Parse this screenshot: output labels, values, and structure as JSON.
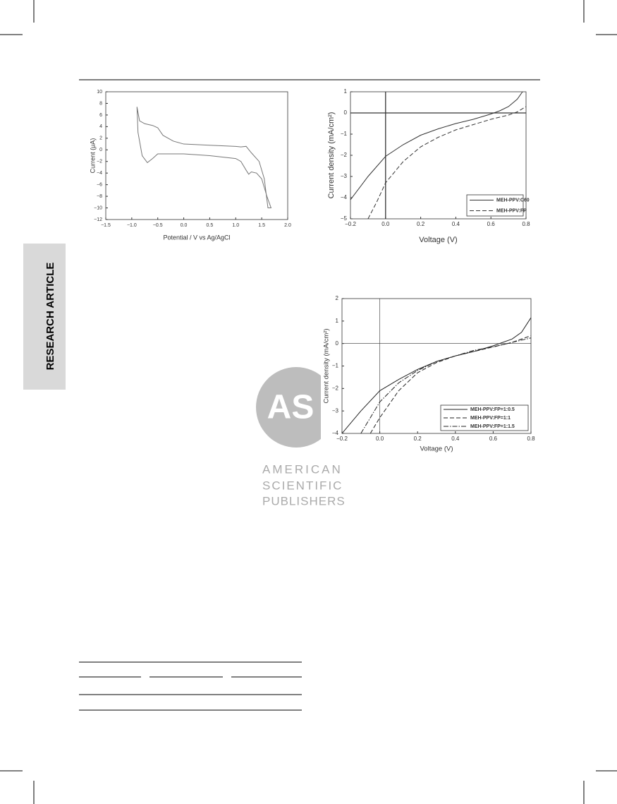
{
  "sidebar": "RESEARCH ARTICLE",
  "logo": {
    "mark": "AS",
    "lines": [
      "AMERICAN",
      "SCIENTIFIC",
      "PUBLISHERS"
    ]
  },
  "chart_data": [
    {
      "type": "line",
      "x_label": "Potential / V vs Ag/AgCl",
      "y_label": "Current (μA)",
      "xlim": [
        -1.5,
        2.0
      ],
      "ylim": [
        -12,
        10
      ],
      "xticks": [
        {
          "value": -1.5,
          "label": "−1.5"
        },
        {
          "value": -1.0,
          "label": "−1.0"
        },
        {
          "value": -0.5,
          "label": "−0.5"
        },
        {
          "value": 0,
          "label": "0.0"
        },
        {
          "value": 0.5,
          "label": "0.5"
        },
        {
          "value": 1.0,
          "label": "1.0"
        },
        {
          "value": 1.5,
          "label": "1.5"
        },
        {
          "value": 2.0,
          "label": "2.0"
        }
      ],
      "yticks": [
        {
          "value": -12,
          "label": "−12"
        },
        {
          "value": -10,
          "label": "−10"
        },
        {
          "value": -8,
          "label": "−8"
        },
        {
          "value": -6,
          "label": "−6"
        },
        {
          "value": -4,
          "label": "−4"
        },
        {
          "value": -2,
          "label": "−2"
        },
        0,
        2,
        4,
        6,
        8,
        10
      ],
      "series": [
        {
          "color": "#777777",
          "dash": "solid",
          "x": [
            -0.9,
            -0.85,
            -0.75,
            -0.6,
            -0.5,
            -0.4,
            -0.2,
            0,
            0.5,
            1.0,
            1.1,
            1.2,
            1.3,
            1.45,
            1.55,
            1.62,
            1.68,
            1.6,
            1.5,
            1.4,
            1.3,
            1.25,
            1.2,
            1.1,
            1.0,
            0.5,
            0,
            -0.5,
            -0.6,
            -0.7,
            -0.8,
            -0.88,
            -0.9
          ],
          "values": [
            7.4,
            5,
            4.5,
            4.2,
            3.8,
            2.5,
            1.5,
            1.0,
            0.8,
            0.6,
            0.5,
            0.6,
            -0.5,
            -2,
            -5,
            -10,
            -10,
            -8,
            -5,
            -4,
            -3.8,
            -4.2,
            -3.5,
            -2.0,
            -1.5,
            -1.0,
            -0.7,
            -0.7,
            -1.5,
            -2.2,
            -1,
            3,
            7.4
          ]
        }
      ]
    },
    {
      "type": "line",
      "x_label": "Voltage (V)",
      "y_label": "Current density (mA/cm²)",
      "xlim": [
        -0.2,
        0.8
      ],
      "ylim": [
        -5,
        1
      ],
      "xticks": [
        {
          "value": -0.2,
          "label": "−0.2"
        },
        {
          "value": 0,
          "label": "0.0"
        },
        0.2,
        0.4,
        0.6,
        0.8
      ],
      "yticks": [
        {
          "value": -5,
          "label": "−5"
        },
        {
          "value": -4,
          "label": "−4"
        },
        {
          "value": -3,
          "label": "−3"
        },
        {
          "value": -2,
          "label": "−2"
        },
        {
          "value": -1,
          "label": "−1"
        },
        0,
        1
      ],
      "legend": "lower right",
      "series": [
        {
          "name": "MEH-PPV:C60",
          "color": "#333333",
          "dash": "solid",
          "x": [
            -0.2,
            -0.1,
            0,
            0.1,
            0.2,
            0.3,
            0.4,
            0.5,
            0.6,
            0.65,
            0.7,
            0.75,
            0.78
          ],
          "values": [
            -4.1,
            -3,
            -2.05,
            -1.5,
            -1.05,
            -0.75,
            -0.5,
            -0.3,
            -0.05,
            0.1,
            0.3,
            0.65,
            1.0
          ]
        },
        {
          "name": "MEH-PPV:FP",
          "color": "#333333",
          "dash": "dashed",
          "x": [
            -0.1,
            -0.05,
            0,
            0.1,
            0.2,
            0.3,
            0.4,
            0.5,
            0.6,
            0.7,
            0.75,
            0.8
          ],
          "values": [
            -5,
            -4.2,
            -3.3,
            -2.3,
            -1.6,
            -1.15,
            -0.8,
            -0.55,
            -0.3,
            -0.1,
            0.05,
            0.3
          ]
        }
      ]
    },
    {
      "type": "line",
      "x_label": "Voltage (V)",
      "y_label": "Current density (mA/cm²)",
      "xlim": [
        -0.2,
        0.8
      ],
      "ylim": [
        -4,
        2
      ],
      "xticks": [
        {
          "value": -0.2,
          "label": "−0.2"
        },
        {
          "value": 0,
          "label": "0.0"
        },
        0.2,
        0.4,
        0.6,
        0.8
      ],
      "yticks": [
        {
          "value": -4,
          "label": "−4"
        },
        {
          "value": -3,
          "label": "−3"
        },
        {
          "value": -2,
          "label": "−2"
        },
        {
          "value": -1,
          "label": "−1"
        },
        0,
        1,
        2
      ],
      "legend": "lower right",
      "series": [
        {
          "name": "MEH-PPV:FP=1:0.5",
          "color": "#222222",
          "dash": "solid",
          "x": [
            -0.2,
            -0.1,
            0,
            0.1,
            0.2,
            0.3,
            0.4,
            0.5,
            0.6,
            0.7,
            0.75,
            0.8
          ],
          "values": [
            -4,
            -3,
            -2.1,
            -1.6,
            -1.15,
            -0.8,
            -0.55,
            -0.35,
            -0.1,
            0.2,
            0.5,
            1.15
          ]
        },
        {
          "name": "MEH-PPV:FP=1:1",
          "color": "#222222",
          "dash": "dashed",
          "x": [
            -0.05,
            0,
            0.1,
            0.2,
            0.3,
            0.4,
            0.5,
            0.6,
            0.7,
            0.8
          ],
          "values": [
            -4,
            -3.3,
            -2.1,
            -1.3,
            -0.85,
            -0.55,
            -0.35,
            -0.15,
            0.05,
            0.35
          ]
        },
        {
          "name": "MEH-PPV:FP=1:1.5",
          "color": "#222222",
          "dash": "dashdot",
          "x": [
            -0.1,
            0,
            0.1,
            0.2,
            0.3,
            0.4,
            0.5,
            0.6,
            0.7,
            0.8
          ],
          "values": [
            -4,
            -2.6,
            -1.75,
            -1.2,
            -0.8,
            -0.55,
            -0.3,
            -0.15,
            0.05,
            0.25
          ]
        }
      ]
    }
  ]
}
